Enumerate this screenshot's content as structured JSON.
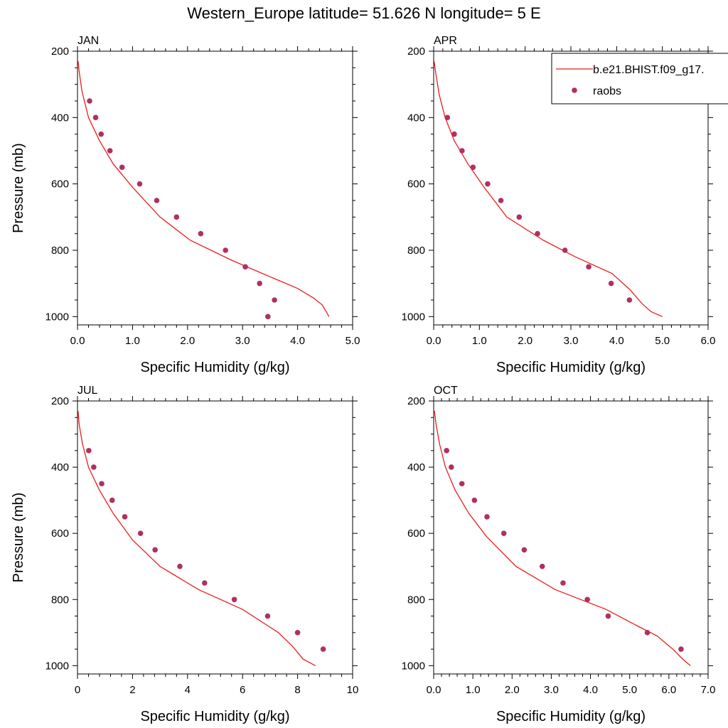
{
  "figure": {
    "title": "Western_Europe  latitude= 51.626 N longitude= 5 E"
  },
  "colors": {
    "model": "#ee1c1c",
    "obs": "#b03060",
    "frame": "#000000"
  },
  "legend": {
    "placement": "top-right, overlapping APR panel",
    "entries": [
      {
        "label": "b.e21.BHIST.f09_g17.",
        "marker": "line",
        "color": "#ee1c1c"
      },
      {
        "label": "raobs",
        "marker": "dot",
        "color": "#b03060"
      }
    ]
  },
  "chart_data": [
    {
      "type": "line",
      "panel": "JAN",
      "xlabel": "Specific Humidity (g/kg)",
      "ylabel": "Pressure (mb)",
      "xlim": [
        0,
        5
      ],
      "ylim": [
        1025,
        200
      ],
      "y_reversed": true,
      "xticks": [
        0,
        1,
        2,
        3,
        4,
        5
      ],
      "xtick_labels": [
        "0.0",
        "1.0",
        "2.0",
        "3.0",
        "4.0",
        "5.0"
      ],
      "yticks": [
        200,
        400,
        600,
        800,
        1000
      ],
      "ytick_labels": [
        "200",
        "400",
        "600",
        "800",
        "1000"
      ],
      "series": [
        {
          "name": "b.e21.BHIST.f09_g17.",
          "kind": "line",
          "color": "#ee1c1c",
          "x": [
            0.01,
            0.03,
            0.08,
            0.2,
            0.4,
            0.65,
            1.0,
            1.5,
            2.05,
            2.8,
            3.5,
            4.0,
            4.3,
            4.45,
            4.52,
            4.57
          ],
          "y": [
            230,
            260,
            320,
            400,
            470,
            540,
            610,
            700,
            770,
            830,
            880,
            915,
            945,
            965,
            985,
            1000
          ]
        },
        {
          "name": "raobs",
          "kind": "scatter",
          "color": "#b03060",
          "x": [
            0.22,
            0.33,
            0.43,
            0.59,
            0.81,
            1.13,
            1.44,
            1.8,
            2.24,
            2.69,
            3.05,
            3.31,
            3.58,
            3.46
          ],
          "y": [
            350,
            400,
            450,
            500,
            550,
            600,
            650,
            700,
            750,
            800,
            850,
            900,
            950,
            1000
          ]
        }
      ]
    },
    {
      "type": "line",
      "panel": "APR",
      "xlabel": "Specific Humidity (g/kg)",
      "ylabel": "",
      "xlim": [
        0,
        6
      ],
      "ylim": [
        1025,
        200
      ],
      "y_reversed": true,
      "xticks": [
        0,
        1,
        2,
        3,
        4,
        5,
        6
      ],
      "xtick_labels": [
        "0.0",
        "1.0",
        "2.0",
        "3.0",
        "4.0",
        "5.0",
        "6.0"
      ],
      "yticks": [
        200,
        400,
        600,
        800,
        1000
      ],
      "ytick_labels": [
        "200",
        "400",
        "600",
        "800",
        "1000"
      ],
      "series": [
        {
          "name": "b.e21.BHIST.f09_g17.",
          "kind": "line",
          "color": "#ee1c1c",
          "x": [
            0.01,
            0.05,
            0.12,
            0.25,
            0.45,
            0.75,
            1.1,
            1.6,
            2.4,
            3.1,
            3.9,
            4.3,
            4.55,
            4.75,
            5.0
          ],
          "y": [
            230,
            270,
            330,
            400,
            470,
            540,
            610,
            700,
            770,
            820,
            870,
            920,
            960,
            985,
            1000
          ]
        },
        {
          "name": "raobs",
          "kind": "scatter",
          "color": "#b03060",
          "x": [
            0.3,
            0.45,
            0.62,
            0.86,
            1.18,
            1.47,
            1.87,
            2.27,
            2.87,
            3.39,
            3.88,
            4.28
          ],
          "y": [
            400,
            450,
            500,
            550,
            600,
            650,
            700,
            750,
            800,
            850,
            900,
            950
          ]
        }
      ]
    },
    {
      "type": "line",
      "panel": "JUL",
      "xlabel": "Specific Humidity (g/kg)",
      "ylabel": "Pressure (mb)",
      "xlim": [
        0,
        10
      ],
      "ylim": [
        1025,
        200
      ],
      "y_reversed": true,
      "xticks": [
        0,
        2,
        4,
        6,
        8,
        10
      ],
      "xtick_labels": [
        "0",
        "2",
        "4",
        "6",
        "8",
        "10"
      ],
      "yticks": [
        200,
        400,
        600,
        800,
        1000
      ],
      "ytick_labels": [
        "200",
        "400",
        "600",
        "800",
        "1000"
      ],
      "series": [
        {
          "name": "b.e21.BHIST.f09_g17.",
          "kind": "line",
          "color": "#ee1c1c",
          "x": [
            0.02,
            0.06,
            0.18,
            0.4,
            0.8,
            1.3,
            2.0,
            3.0,
            4.4,
            6.0,
            7.3,
            7.8,
            8.2,
            8.65
          ],
          "y": [
            230,
            270,
            330,
            400,
            470,
            540,
            620,
            700,
            770,
            830,
            900,
            940,
            980,
            1000
          ]
        },
        {
          "name": "raobs",
          "kind": "scatter",
          "color": "#b03060",
          "x": [
            0.41,
            0.59,
            0.88,
            1.26,
            1.72,
            2.29,
            2.82,
            3.72,
            4.62,
            5.7,
            6.91,
            8.0,
            8.93
          ],
          "y": [
            350,
            400,
            450,
            500,
            550,
            600,
            650,
            700,
            750,
            800,
            850,
            900,
            950
          ]
        }
      ]
    },
    {
      "type": "line",
      "panel": "OCT",
      "xlabel": "Specific Humidity (g/kg)",
      "ylabel": "",
      "xlim": [
        0,
        7
      ],
      "ylim": [
        1025,
        200
      ],
      "y_reversed": true,
      "xticks": [
        0,
        1,
        2,
        3,
        4,
        5,
        6,
        7
      ],
      "xtick_labels": [
        "0.0",
        "1.0",
        "2.0",
        "3.0",
        "4.0",
        "5.0",
        "6.0",
        "7.0"
      ],
      "yticks": [
        200,
        400,
        600,
        800,
        1000
      ],
      "ytick_labels": [
        "200",
        "400",
        "600",
        "800",
        "1000"
      ],
      "series": [
        {
          "name": "b.e21.BHIST.f09_g17.",
          "kind": "line",
          "color": "#ee1c1c",
          "x": [
            0.02,
            0.06,
            0.15,
            0.3,
            0.55,
            0.9,
            1.35,
            2.1,
            3.1,
            4.4,
            5.2,
            5.7,
            6.1,
            6.35,
            6.55
          ],
          "y": [
            230,
            270,
            330,
            400,
            470,
            540,
            610,
            700,
            770,
            830,
            880,
            910,
            950,
            980,
            1000
          ]
        },
        {
          "name": "raobs",
          "kind": "scatter",
          "color": "#b03060",
          "x": [
            0.33,
            0.45,
            0.72,
            1.04,
            1.36,
            1.79,
            2.31,
            2.77,
            3.3,
            3.92,
            4.45,
            5.45,
            6.31
          ],
          "y": [
            350,
            400,
            450,
            500,
            550,
            600,
            650,
            700,
            750,
            800,
            850,
            900,
            950
          ]
        }
      ]
    }
  ]
}
